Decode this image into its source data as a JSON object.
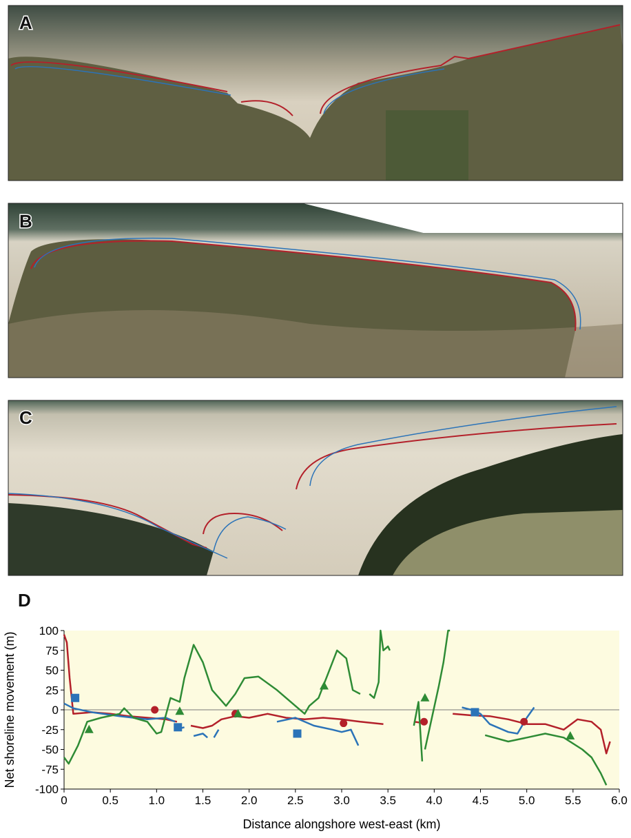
{
  "panel_labels": [
    "A",
    "B",
    "C"
  ],
  "chart_data": {
    "type": "line",
    "label": "D",
    "xlabel": "Distance alongshore west-east (km)",
    "ylabel": "Net shoreline movement (m)",
    "xlim": [
      0,
      6
    ],
    "ylim": [
      -100,
      100
    ],
    "xticks": [
      0,
      0.5,
      {
        "value": 1,
        "label": "1.0"
      },
      1.5,
      {
        "value": 2,
        "label": "2.0"
      },
      2.5,
      {
        "value": 3,
        "label": "3.0"
      },
      3.5,
      {
        "value": 4,
        "label": "4.0"
      },
      4.5,
      {
        "value": 5,
        "label": "5.0"
      },
      5.5,
      {
        "value": 6,
        "label": "6.0"
      }
    ],
    "yticks": [
      -100,
      -75,
      -50,
      -25,
      0,
      25,
      50,
      75,
      100
    ],
    "background": "#fdfbe0",
    "zero_line": true,
    "series": [
      {
        "color": "#b3202a",
        "x": [
          0,
          0.03,
          0.06,
          0.1,
          0.3,
          0.5,
          0.7,
          0.9,
          1.1,
          1.22,
          1.3,
          1.37,
          1.5,
          1.6,
          1.7,
          1.85,
          2.0,
          2.2,
          2.4,
          2.6,
          2.8,
          3.0,
          3.2,
          3.45,
          3.6,
          3.78,
          3.9,
          4.0,
          4.2,
          4.4,
          4.6,
          4.8,
          5.0,
          5.2,
          5.4,
          5.55,
          5.7,
          5.8,
          5.86,
          5.9
        ],
        "values": [
          95,
          85,
          40,
          -5,
          -3,
          -5,
          -8,
          -10,
          -12,
          -15,
          null,
          -20,
          -23,
          -20,
          -12,
          -8,
          -10,
          -5,
          -10,
          -12,
          -10,
          -12,
          -15,
          -18,
          null,
          -15,
          -17,
          null,
          -5,
          -7,
          -8,
          -12,
          -18,
          -18,
          -25,
          -12,
          -15,
          -25,
          -55,
          -40
        ]
      },
      {
        "color": "#2b73b8",
        "x": [
          0,
          0.1,
          0.3,
          0.6,
          0.9,
          1.1,
          1.2,
          1.2,
          1.2,
          1.3,
          1.35,
          1.4,
          1.5,
          1.55,
          1.6,
          1.62,
          1.67,
          2.0,
          2.3,
          2.5,
          2.7,
          2.9,
          3.0,
          3.1,
          3.18,
          3.7,
          4.3,
          4.4,
          4.5,
          4.6,
          4.8,
          4.9,
          5.0,
          5.08
        ],
        "values": [
          8,
          2,
          -3,
          -8,
          -12,
          -10,
          -15,
          null,
          -25,
          -22,
          null,
          -33,
          -30,
          -35,
          null,
          -35,
          -25,
          null,
          -15,
          -10,
          -20,
          -25,
          -28,
          -25,
          -45,
          null,
          3,
          0,
          -5,
          -18,
          -28,
          -30,
          -10,
          3
        ]
      },
      {
        "color": "#2e8b35",
        "x": [
          0,
          0.05,
          0.15,
          0.25,
          0.4,
          0.6,
          0.65,
          0.75,
          0.9,
          1.0,
          1.05,
          1.15,
          1.25,
          1.3,
          1.4,
          1.5,
          1.6,
          1.75,
          1.85,
          1.95,
          2.1,
          2.3,
          2.5,
          2.6,
          2.65,
          2.75,
          2.85,
          2.95,
          3.05,
          3.12,
          3.2,
          3.25,
          3.3,
          3.35,
          3.4,
          3.42,
          3.45,
          3.5,
          3.52,
          3.65,
          3.78,
          3.83,
          3.87,
          3.88,
          3.9,
          4.05,
          4.1,
          4.15,
          4.17,
          4.3,
          4.55,
          4.8,
          5.0,
          5.2,
          5.4,
          5.6,
          5.7,
          5.8,
          5.86
        ],
        "values": [
          -60,
          -68,
          -45,
          -15,
          -10,
          -5,
          2,
          -10,
          -15,
          -30,
          -28,
          15,
          10,
          40,
          82,
          60,
          25,
          5,
          20,
          40,
          42,
          25,
          5,
          -5,
          5,
          15,
          45,
          75,
          65,
          25,
          20,
          null,
          20,
          15,
          35,
          100,
          75,
          80,
          75,
          null,
          -20,
          10,
          -65,
          null,
          -50,
          30,
          60,
          100,
          100,
          null,
          -32,
          -40,
          -35,
          -30,
          -35,
          -50,
          -60,
          -80,
          -95
        ]
      }
    ],
    "points": [
      {
        "color": "#2b73b8",
        "marker": "square",
        "x": [
          0.12,
          1.23,
          2.52,
          4.44
        ],
        "values": [
          15,
          -22,
          -30,
          -3
        ]
      },
      {
        "color": "#b3202a",
        "marker": "circle",
        "x": [
          0.98,
          1.85,
          3.02,
          3.89,
          4.97
        ],
        "values": [
          0,
          -5,
          -17,
          -15,
          -15
        ]
      },
      {
        "color": "#2e8b35",
        "marker": "triangle",
        "x": [
          0.27,
          1.25,
          1.88,
          2.81,
          3.9,
          5.47
        ],
        "values": [
          -25,
          -2,
          -5,
          30,
          15,
          -33
        ]
      }
    ]
  }
}
